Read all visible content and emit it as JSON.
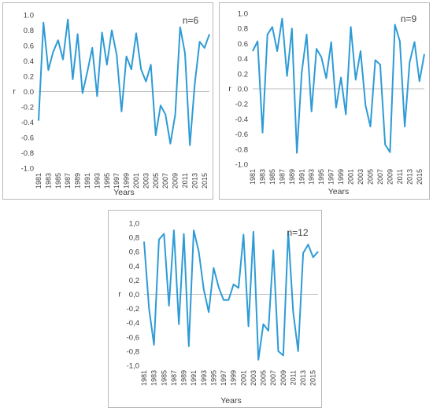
{
  "chart_data": [
    {
      "type": "line",
      "annotation": "n=6",
      "xlabel": "Years",
      "ylabel": "r",
      "ylim": [
        -1.0,
        1.0
      ],
      "yticks": [
        "-1.0",
        "-0.8",
        "-0.6",
        "-0.4",
        "-0.2",
        "0.0",
        "0.2",
        "0.4",
        "0.6",
        "0.8",
        "1.0"
      ],
      "xticks": [
        "1981",
        "1983",
        "1985",
        "1987",
        "1989",
        "1991",
        "1993",
        "1995",
        "1997",
        "1999",
        "2001",
        "2003",
        "2005",
        "2007",
        "2009",
        "2011",
        "2013",
        "2015"
      ],
      "x": [
        1981,
        1982,
        1983,
        1984,
        1985,
        1986,
        1987,
        1988,
        1989,
        1990,
        1991,
        1992,
        1993,
        1994,
        1995,
        1996,
        1997,
        1998,
        1999,
        2000,
        2001,
        2002,
        2003,
        2004,
        2005,
        2006,
        2007,
        2008,
        2009,
        2010,
        2011,
        2012,
        2013,
        2014,
        2015,
        2016
      ],
      "values": [
        -0.38,
        0.9,
        0.28,
        0.52,
        0.67,
        0.42,
        0.94,
        0.16,
        0.75,
        -0.02,
        0.26,
        0.57,
        -0.06,
        0.77,
        0.35,
        0.8,
        0.48,
        -0.26,
        0.46,
        0.29,
        0.76,
        0.29,
        0.13,
        0.35,
        -0.57,
        -0.18,
        -0.3,
        -0.68,
        -0.3,
        0.84,
        0.5,
        -0.7,
        0.1,
        0.65,
        0.57,
        0.75
      ],
      "color": "#2e9bd6"
    },
    {
      "type": "line",
      "annotation": "n=9",
      "xlabel": "Years",
      "ylabel": "r",
      "ylim": [
        -1.0,
        1.0
      ],
      "yticks": [
        "-1.0",
        "-0.8",
        "-0.6",
        "-0.4",
        "-0.2",
        "0.0",
        "0.2",
        "0.4",
        "0.6",
        "0.8",
        "1.0"
      ],
      "xticks": [
        "1981",
        "1983",
        "1985",
        "1987",
        "1989",
        "1991",
        "1993",
        "1995",
        "1997",
        "1999",
        "2001",
        "2003",
        "2005",
        "2007",
        "2009",
        "2011",
        "2013",
        "2015"
      ],
      "x": [
        1981,
        1982,
        1983,
        1984,
        1985,
        1986,
        1987,
        1988,
        1989,
        1990,
        1991,
        1992,
        1993,
        1994,
        1995,
        1996,
        1997,
        1998,
        1999,
        2000,
        2001,
        2002,
        2003,
        2004,
        2005,
        2006,
        2007,
        2008,
        2009,
        2010,
        2011,
        2012,
        2013,
        2014,
        2015,
        2016
      ],
      "values": [
        0.5,
        0.63,
        -0.58,
        0.72,
        0.82,
        0.5,
        0.93,
        0.17,
        0.8,
        -0.85,
        0.22,
        0.72,
        -0.3,
        0.53,
        0.42,
        0.14,
        0.62,
        -0.25,
        0.15,
        -0.34,
        0.82,
        0.12,
        0.5,
        -0.22,
        -0.5,
        0.38,
        0.32,
        -0.74,
        -0.84,
        0.85,
        0.63,
        -0.5,
        0.35,
        0.62,
        0.1,
        0.46
      ],
      "color": "#2e9bd6"
    },
    {
      "type": "line",
      "annotation": "n=12",
      "xlabel": "Years",
      "ylabel": "r",
      "ylim": [
        -1.0,
        1.0
      ],
      "yticks": [
        "-1,0",
        "-0,8",
        "-0,6",
        "-0,4",
        "-0,2",
        "0,0",
        "0,2",
        "0,4",
        "0,6",
        "0,8",
        "1,0"
      ],
      "xticks": [
        "1981",
        "1983",
        "1985",
        "1987",
        "1989",
        "1991",
        "1993",
        "1995",
        "1997",
        "1999",
        "2001",
        "2003",
        "2005",
        "2007",
        "2009",
        "2011",
        "2013",
        "2015"
      ],
      "x": [
        1981,
        1982,
        1983,
        1984,
        1985,
        1986,
        1987,
        1988,
        1989,
        1990,
        1991,
        1992,
        1993,
        1994,
        1995,
        1996,
        1997,
        1998,
        1999,
        2000,
        2001,
        2002,
        2003,
        2004,
        2005,
        2006,
        2007,
        2008,
        2009,
        2010,
        2011,
        2012,
        2013,
        2014,
        2015,
        2016
      ],
      "values": [
        0.74,
        -0.2,
        -0.71,
        0.77,
        0.85,
        -0.16,
        0.9,
        -0.42,
        0.85,
        -0.73,
        0.9,
        0.6,
        0.07,
        -0.25,
        0.37,
        0.1,
        -0.08,
        -0.08,
        0.14,
        0.09,
        0.84,
        -0.45,
        0.88,
        -0.92,
        -0.42,
        -0.51,
        0.62,
        -0.8,
        -0.86,
        0.88,
        -0.25,
        -0.8,
        0.58,
        0.7,
        0.52,
        0.6
      ],
      "color": "#2e9bd6"
    }
  ]
}
